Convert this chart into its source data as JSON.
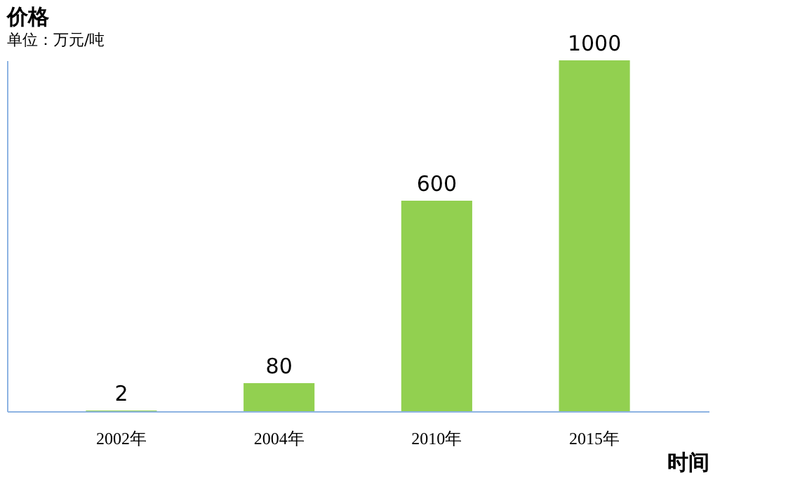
{
  "chart_data": {
    "type": "bar",
    "title": "价格",
    "subtitle": "单位：万元/吨",
    "xlabel": "时间",
    "categories": [
      "2002年",
      "2004年",
      "2010年",
      "2015年"
    ],
    "values": [
      2,
      80,
      600,
      1000
    ],
    "color": "#92d050",
    "data_labels": true,
    "tick_labels": "x",
    "grid": false
  }
}
